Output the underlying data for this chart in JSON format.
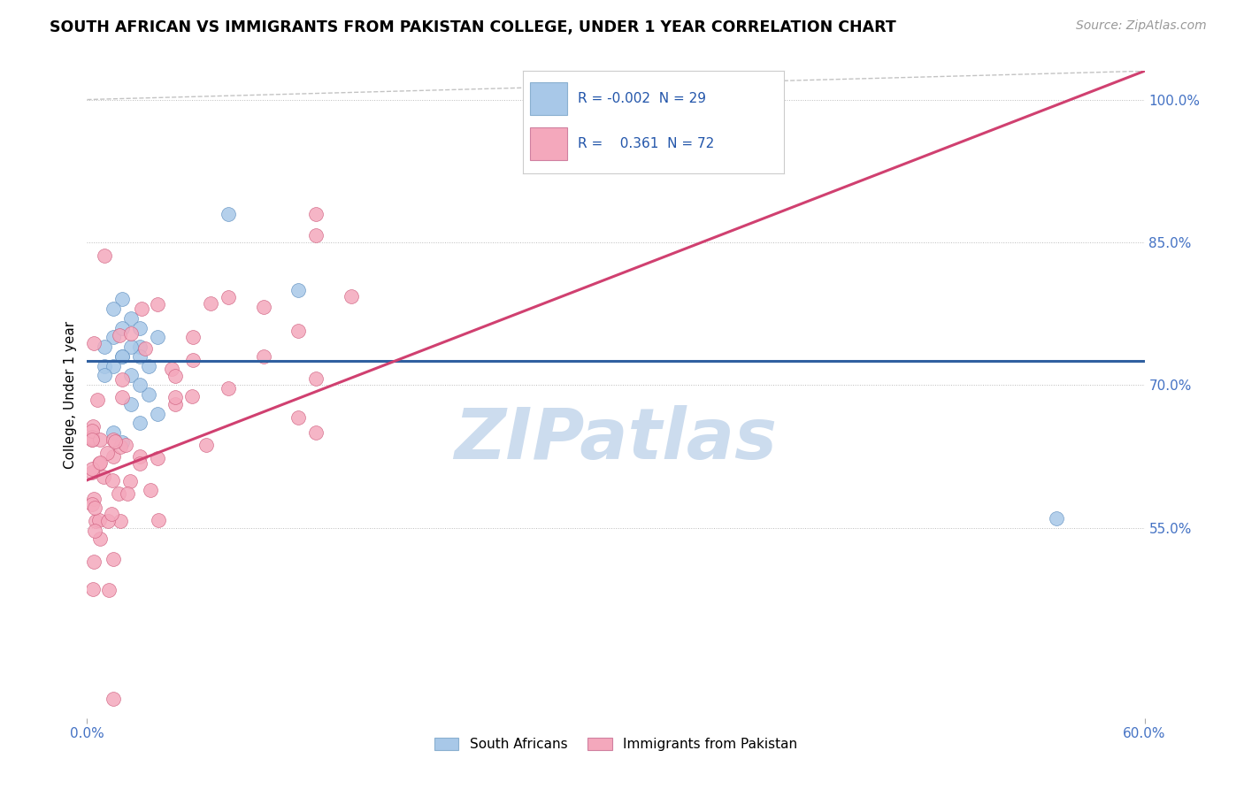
{
  "title": "SOUTH AFRICAN VS IMMIGRANTS FROM PAKISTAN COLLEGE, UNDER 1 YEAR CORRELATION CHART",
  "source": "Source: ZipAtlas.com",
  "x_min": 0.0,
  "x_max": 60.0,
  "y_min": 35.0,
  "y_max": 103.0,
  "blue_R": "-0.002",
  "blue_N": "29",
  "pink_R": "0.361",
  "pink_N": "72",
  "blue_color": "#a8c8e8",
  "pink_color": "#f4a8bc",
  "blue_line_color": "#3060a0",
  "pink_line_color": "#d04070",
  "watermark": "ZIPatlas",
  "watermark_color": "#ccdcee",
  "legend_label_blue": "South Africans",
  "legend_label_pink": "Immigrants from Pakistan",
  "ylabel": "College, Under 1 year",
  "right_yticks": [
    100.0,
    85.0,
    70.0,
    55.0
  ],
  "right_yticklabels": [
    "100.0%",
    "85.0%",
    "70.0%",
    "55.0%"
  ],
  "blue_line_y": 72.5,
  "pink_line_x0": 0.0,
  "pink_line_y0": 60.0,
  "pink_line_x1": 60.0,
  "pink_line_y1": 103.0,
  "diag_x0": 0.0,
  "diag_y0": 103.0,
  "diag_x1": 60.0,
  "diag_y1": 103.0
}
